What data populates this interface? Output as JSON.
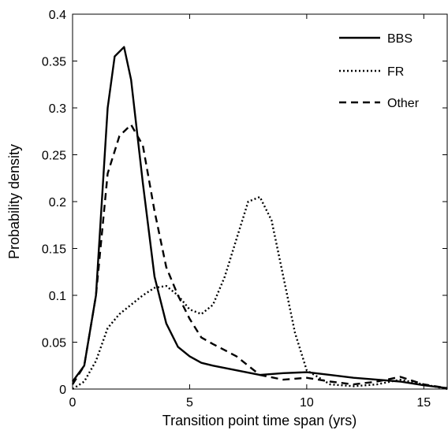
{
  "chart_data": {
    "type": "line",
    "title": "",
    "xlabel": "Transition point time span (yrs)",
    "ylabel": "Probability density",
    "xlim": [
      0,
      16
    ],
    "ylim": [
      0,
      0.4
    ],
    "x_ticks": [
      0,
      5,
      10,
      15
    ],
    "x_tick_labels": [
      "0",
      "5",
      "10",
      "15"
    ],
    "y_ticks": [
      0,
      0.05,
      0.1,
      0.15,
      0.2,
      0.25,
      0.3,
      0.35,
      0.4
    ],
    "y_tick_labels": [
      "0",
      "0.05",
      "0.1",
      "0.15",
      "0.2",
      "0.25",
      "0.3",
      "0.35",
      "0.4"
    ],
    "grid": false,
    "legend": {
      "position": "top-right",
      "entries": [
        "BBS",
        "FR",
        "Other"
      ]
    },
    "series": [
      {
        "name": "BBS",
        "style": "solid",
        "color": "#000000",
        "x": [
          0,
          0.5,
          1,
          1.5,
          1.8,
          2,
          2.2,
          2.5,
          3,
          3.5,
          4,
          4.5,
          5,
          5.5,
          6,
          7,
          8,
          9,
          10,
          11,
          12,
          13,
          14,
          15,
          16
        ],
        "y": [
          0.008,
          0.025,
          0.1,
          0.3,
          0.355,
          0.36,
          0.365,
          0.33,
          0.22,
          0.12,
          0.07,
          0.045,
          0.035,
          0.028,
          0.025,
          0.02,
          0.015,
          0.017,
          0.018,
          0.015,
          0.012,
          0.01,
          0.008,
          0.004,
          0.001
        ]
      },
      {
        "name": "FR",
        "style": "dotted",
        "color": "#000000",
        "x": [
          0,
          0.5,
          1,
          1.5,
          2,
          2.5,
          3,
          3.5,
          4,
          4.5,
          5,
          5.5,
          6,
          6.5,
          7,
          7.5,
          8,
          8.5,
          9,
          9.5,
          10,
          11,
          12,
          13,
          14,
          15,
          16
        ],
        "y": [
          0.0,
          0.008,
          0.03,
          0.065,
          0.08,
          0.09,
          0.1,
          0.108,
          0.11,
          0.1,
          0.085,
          0.08,
          0.09,
          0.12,
          0.16,
          0.2,
          0.205,
          0.18,
          0.12,
          0.06,
          0.02,
          0.005,
          0.003,
          0.005,
          0.01,
          0.005,
          0.0
        ]
      },
      {
        "name": "Other",
        "style": "dashed",
        "color": "#000000",
        "x": [
          0,
          0.5,
          1,
          1.5,
          2,
          2.5,
          3,
          3.5,
          4,
          4.5,
          5,
          5.5,
          6,
          7,
          8,
          9,
          10,
          11,
          12,
          13,
          14,
          15,
          16
        ],
        "y": [
          0.005,
          0.025,
          0.1,
          0.23,
          0.27,
          0.282,
          0.26,
          0.19,
          0.13,
          0.1,
          0.075,
          0.055,
          0.048,
          0.035,
          0.015,
          0.01,
          0.012,
          0.008,
          0.005,
          0.008,
          0.013,
          0.005,
          0.001
        ]
      }
    ]
  }
}
